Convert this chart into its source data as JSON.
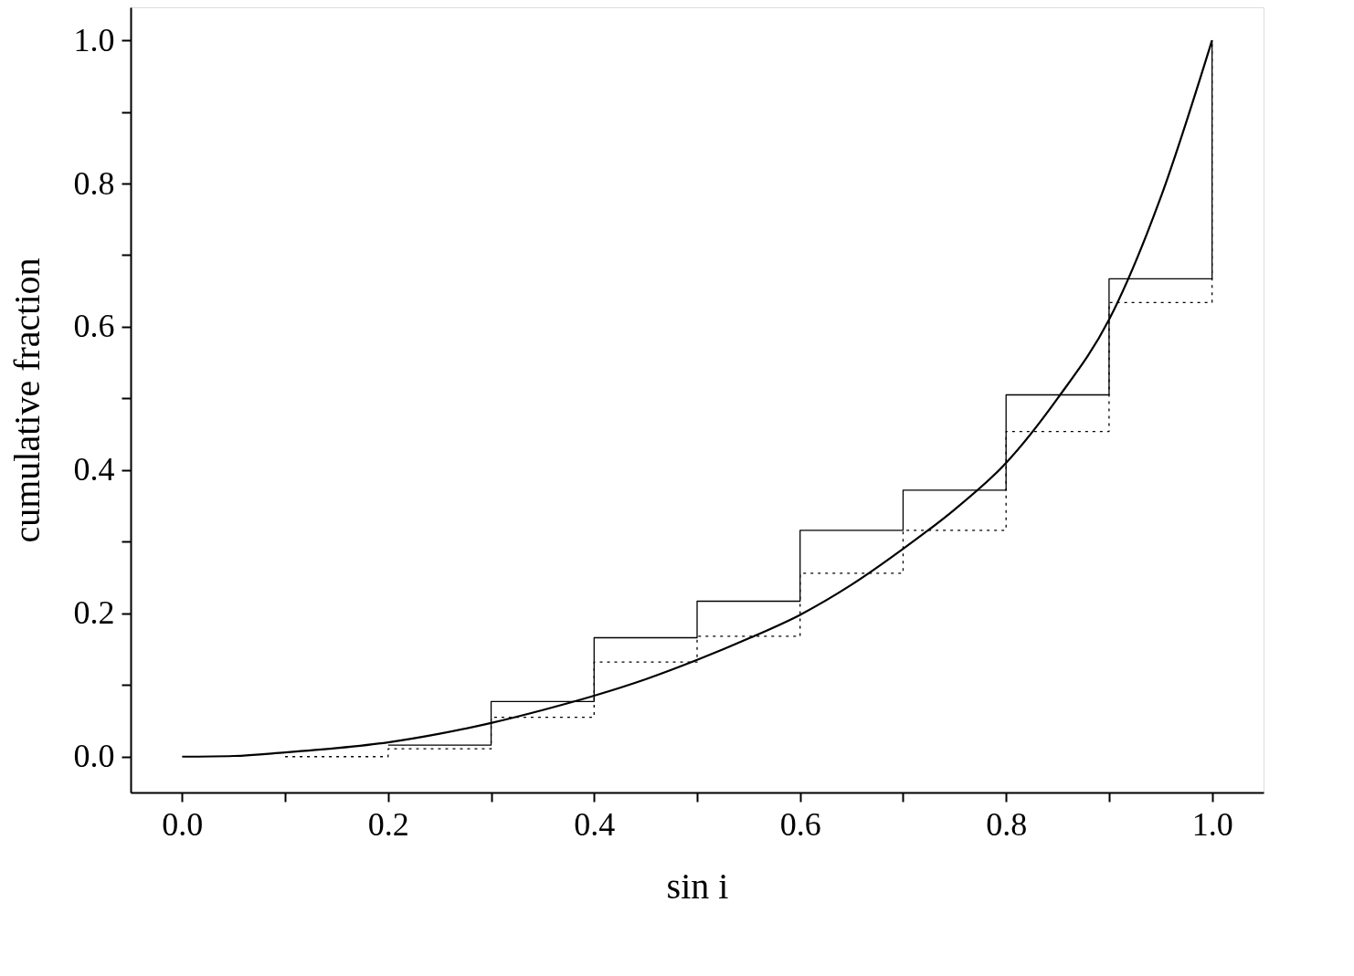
{
  "chart_data": {
    "type": "line",
    "xlabel": "sin i",
    "ylabel": "cumulative fraction",
    "xlim": [
      -0.05,
      1.05
    ],
    "ylim": [
      -0.05,
      1.046
    ],
    "xticks": [
      {
        "value": 0,
        "label": "0.0"
      },
      {
        "value": 0.1,
        "label": null
      },
      {
        "value": 0.2,
        "label": "0.2"
      },
      {
        "value": 0.3,
        "label": null
      },
      {
        "value": 0.4,
        "label": "0.4"
      },
      {
        "value": 0.5,
        "label": null
      },
      {
        "value": 0.6,
        "label": "0.6"
      },
      {
        "value": 0.7,
        "label": null
      },
      {
        "value": 0.8,
        "label": "0.8"
      },
      {
        "value": 0.9,
        "label": null
      },
      {
        "value": 1.0,
        "label": "1.0"
      }
    ],
    "yticks": [
      {
        "value": 0,
        "label": "0.0"
      },
      {
        "value": 0.1,
        "label": null
      },
      {
        "value": 0.2,
        "label": "0.2"
      },
      {
        "value": 0.3,
        "label": null
      },
      {
        "value": 0.4,
        "label": "0.4"
      },
      {
        "value": 0.5,
        "label": null
      },
      {
        "value": 0.6,
        "label": "0.6"
      },
      {
        "value": 0.7,
        "label": null
      },
      {
        "value": 0.8,
        "label": "0.8"
      },
      {
        "value": 0.9,
        "label": null
      },
      {
        "value": 1.0,
        "label": "1.0"
      }
    ],
    "grid": false,
    "marker": "none",
    "series": [
      {
        "type": "step",
        "line_style": "solid",
        "color": "#000000",
        "x": [
          0.2,
          0.3,
          0.4,
          0.5,
          0.6,
          0.7,
          0.8,
          0.9,
          1.0
        ],
        "values": [
          0.016,
          0.077,
          0.166,
          0.217,
          0.316,
          0.372,
          0.505,
          0.667,
          1.0
        ]
      },
      {
        "type": "step",
        "line_style": "dotted",
        "color": "#000000",
        "x": [
          0.1,
          0.2,
          0.3,
          0.4,
          0.5,
          0.6,
          0.7,
          0.8,
          0.9,
          1.0
        ],
        "values": [
          0.0,
          0.011,
          0.055,
          0.132,
          0.168,
          0.256,
          0.316,
          0.454,
          0.634,
          1.0
        ]
      },
      {
        "line_style": "solid",
        "color": "#000000",
        "x": [
          0,
          0.05,
          0.1,
          0.15,
          0.2,
          0.25,
          0.3,
          0.35,
          0.4,
          0.45,
          0.5,
          0.55,
          0.6,
          0.65,
          0.7,
          0.75,
          0.8,
          0.85,
          0.9,
          0.95,
          1.0
        ],
        "values": [
          0.0,
          0.001,
          0.006,
          0.012,
          0.02,
          0.032,
          0.047,
          0.065,
          0.085,
          0.108,
          0.135,
          0.165,
          0.198,
          0.24,
          0.29,
          0.345,
          0.41,
          0.5,
          0.61,
          0.78,
          1.0
        ]
      }
    ]
  }
}
